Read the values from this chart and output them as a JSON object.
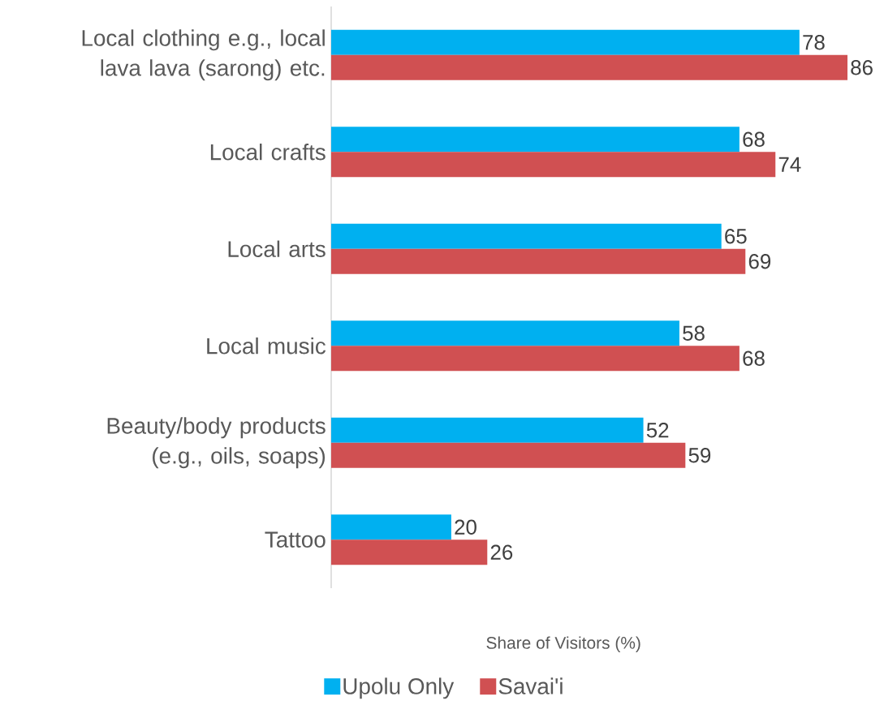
{
  "chart_data": {
    "type": "bar",
    "orientation": "horizontal",
    "xlabel": "Share of Visitors (%)",
    "categories": [
      "Local clothing e.g., local lava lava (sarong) etc.",
      "Local crafts",
      "Local arts",
      "Local music",
      "Beauty/body products (e.g., oils, soaps)",
      "Tattoo"
    ],
    "series": [
      {
        "name": "Upolu Only",
        "color": "#00b0f0",
        "values": [
          78,
          68,
          65,
          58,
          52,
          20
        ]
      },
      {
        "name": "Savai'i",
        "color": "#d05052",
        "values": [
          86,
          74,
          69,
          68,
          59,
          26
        ]
      }
    ],
    "data_labels": true,
    "legend": "bottom"
  }
}
